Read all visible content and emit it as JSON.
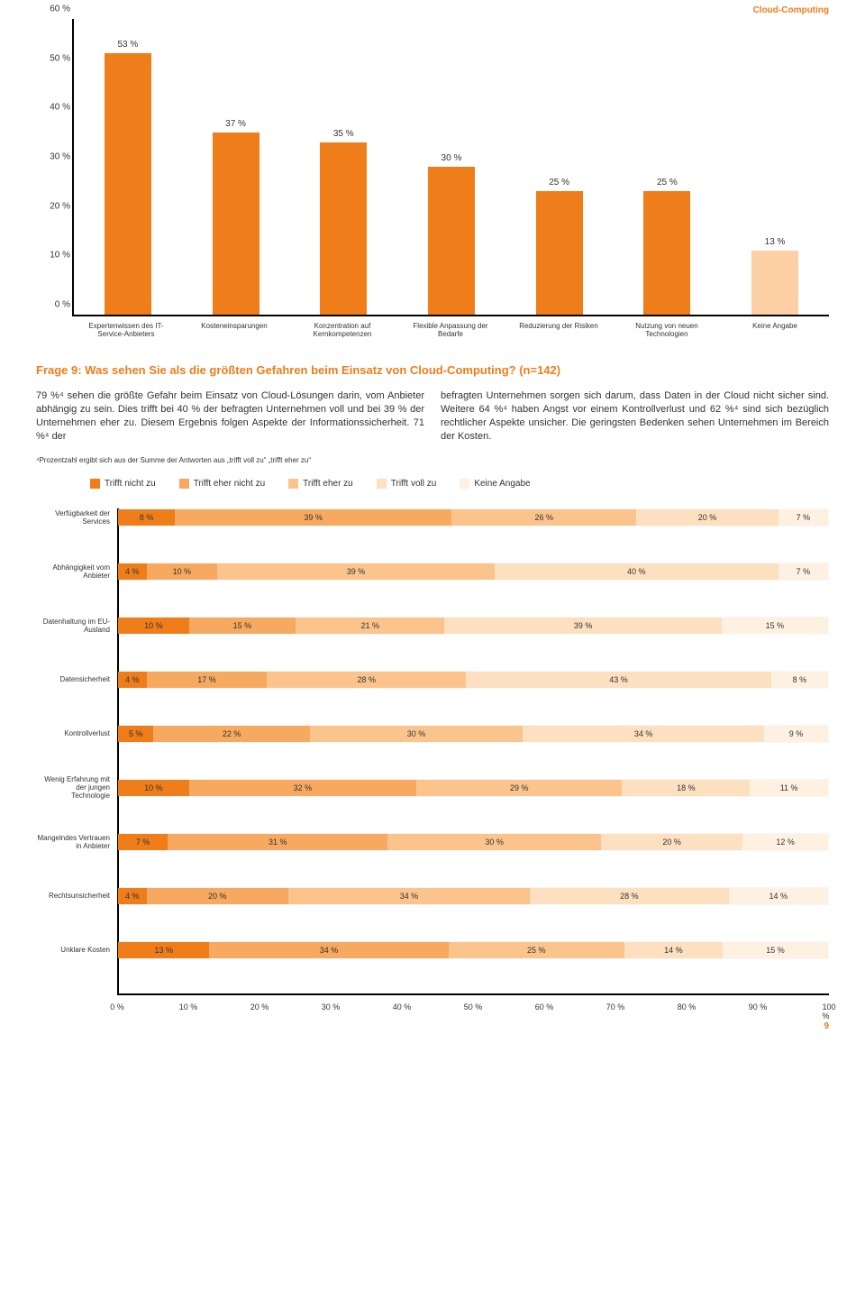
{
  "header_topic": "Cloud-Computing",
  "header_color": "#ee7d1a",
  "page_number": "9",
  "page_number_color": "#ee7d1a",
  "bar_chart": {
    "type": "bar",
    "y_max": 60,
    "y_tick_step": 10,
    "bar_color": "#ee7d1a",
    "last_bar_color": "#fccfa4",
    "axis_color": "#000000",
    "value_suffix": " %",
    "categories": [
      "Expertenwissen des IT-Service-Anbieters",
      "Kosteneinsparungen",
      "Konzentration auf Kernkompe­tenzen",
      "Flexible Anpassung der Bedarfe",
      "Reduzierung der Risiken",
      "Nutzung von neuen Technologien",
      "Keine Angabe"
    ],
    "values": [
      53,
      37,
      35,
      30,
      25,
      25,
      13
    ],
    "label_fontsize": 8,
    "value_fontsize": 10
  },
  "question_heading": "Frage 9: Was sehen Sie als die größten Gefahren beim Einsatz von Cloud-Computing? (n=142)",
  "heading_color": "#ee7d1a",
  "body_col1": "79 %⁴ sehen die größte Gefahr beim Einsatz von Cloud‑Lösungen darin, vom Anbieter abhängig zu sein. Dies trifft bei 40 % der befragten Unternehmen voll und bei 39 % der Unternehmen eher zu. Diesem Ergebnis folgen Aspekte der Informationssicherheit. 71 %⁴ der",
  "body_col2": "befragten Unternehmen sorgen sich darum, dass Daten in der Cloud nicht sicher sind. Weitere 64 %⁴ haben Angst vor einem Kontrollverlust und 62 %⁴ sind sich bezüglich rechtlicher Aspekte unsicher. Die geringsten Bedenken sehen Unternehmen im Bereich der Kosten.",
  "footnote": "⁴Prozentzahl ergibt sich aus der Summe der Antworten aus „trifft voll zu“ „trifft eher zu“",
  "legend": {
    "items": [
      {
        "label": "Trifft nicht zu",
        "color": "#ee7d1a"
      },
      {
        "label": "Trifft eher nicht zu",
        "color": "#f6a95f"
      },
      {
        "label": "Trifft eher zu",
        "color": "#fbc48c"
      },
      {
        "label": "Trifft voll zu",
        "color": "#fde0bf"
      },
      {
        "label": "Keine Angabe",
        "color": "#fef1e2"
      }
    ],
    "swatch_size": 11,
    "fontsize": 10
  },
  "stacked": {
    "type": "stacked-hbar",
    "x_max": 100,
    "x_tick_step": 10,
    "x_suffix": " %",
    "seg_colors": [
      "#ee7d1a",
      "#f6a95f",
      "#fbc48c",
      "#fde0bf",
      "#fef1e2"
    ],
    "label_fontsize": 8,
    "value_fontsize": 9,
    "rows": [
      {
        "label": "Verfügbarkeit der Services",
        "segs": [
          8,
          39,
          26,
          20,
          7
        ]
      },
      {
        "label": "Abhängigkeit vom Anbieter",
        "segs": [
          4,
          10,
          39,
          40,
          7
        ]
      },
      {
        "label": "Datenhaltung im EU-Ausland",
        "segs": [
          10,
          15,
          21,
          39,
          15
        ]
      },
      {
        "label": "Daten­sicherheit",
        "segs": [
          4,
          17,
          28,
          43,
          8
        ]
      },
      {
        "label": "Kontrollverlust",
        "segs": [
          5,
          22,
          30,
          34,
          9
        ]
      },
      {
        "label": "Wenig Erfahrung mit der jungen Technologie",
        "segs": [
          10,
          32,
          29,
          18,
          11
        ]
      },
      {
        "label": "Mangelndes Vertrauen in Anbieter",
        "segs": [
          7,
          31,
          30,
          20,
          12
        ]
      },
      {
        "label": "Rechts­unsicherheit",
        "segs": [
          4,
          20,
          34,
          28,
          14
        ]
      },
      {
        "label": "Unklare Kosten",
        "segs": [
          13,
          34,
          25,
          14,
          15
        ],
        "no_sum_fix": true
      }
    ]
  }
}
